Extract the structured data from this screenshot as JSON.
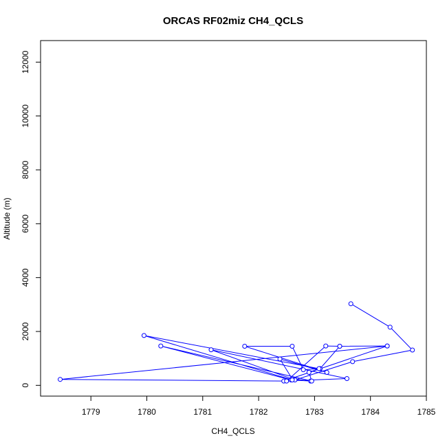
{
  "chart_data": {
    "type": "line",
    "title": "ORCAS RF02miz CH4_QCLS",
    "xlabel": "CH4_QCLS",
    "ylabel": "Altitude (m)",
    "xlim": [
      1778.1,
      1785.0
    ],
    "ylim": [
      -400,
      12800
    ],
    "xticks": [
      1779,
      1780,
      1781,
      1782,
      1783,
      1784,
      1785
    ],
    "yticks": [
      0,
      2000,
      4000,
      6000,
      8000,
      10000,
      12000
    ],
    "series": [
      {
        "color": "#0000ff",
        "marker": "open-circle",
        "x": [
          1783.65,
          1784.35,
          1784.75,
          1783.68,
          1782.65,
          1781.15,
          1783.58,
          1782.45,
          1784.3,
          1778.45,
          1782.5,
          1783.2,
          1783.45,
          1784.3,
          1783.45,
          1783.1,
          1782.8,
          1782.6,
          1781.75,
          1783.22,
          1782.38,
          1782.6,
          1782.93,
          1782.58,
          1780.25,
          1782.95,
          1782.9,
          1783.08,
          1779.95,
          1782.6
        ],
        "y": [
          3030,
          2160,
          1310,
          880,
          200,
          1320,
          250,
          160,
          1460,
          220,
          160,
          1460,
          1450,
          1460,
          1450,
          620,
          580,
          1450,
          1450,
          480,
          980,
          240,
          160,
          200,
          1460,
          160,
          480,
          620,
          1850,
          200
        ]
      }
    ]
  }
}
